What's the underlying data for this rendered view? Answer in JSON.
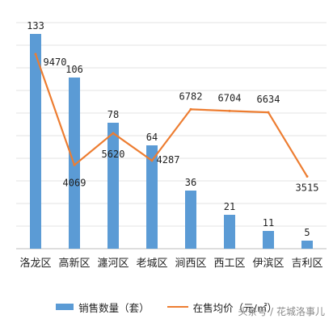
{
  "chart_data": {
    "type": "bar",
    "categories": [
      "洛龙区",
      "高新区",
      "瀍河区",
      "老城区",
      "涧西区",
      "西工区",
      "伊滨区",
      "吉利区"
    ],
    "series": [
      {
        "name": "销售数量（套）",
        "type": "bar",
        "values": [
          133,
          106,
          78,
          64,
          36,
          21,
          11,
          5
        ],
        "color": "#5b9bd5"
      },
      {
        "name": "在售均价（元/㎡）",
        "type": "line",
        "values": [
          9470,
          4069,
          5620,
          4287,
          6782,
          6704,
          6634,
          3515
        ],
        "color": "#ed7d31"
      }
    ],
    "bar_ylim": [
      0,
      140
    ],
    "line_ylim": [
      0,
      11000
    ],
    "grid": true,
    "legend_position": "bottom"
  },
  "watermark": "头条号 / 花城洛事儿"
}
